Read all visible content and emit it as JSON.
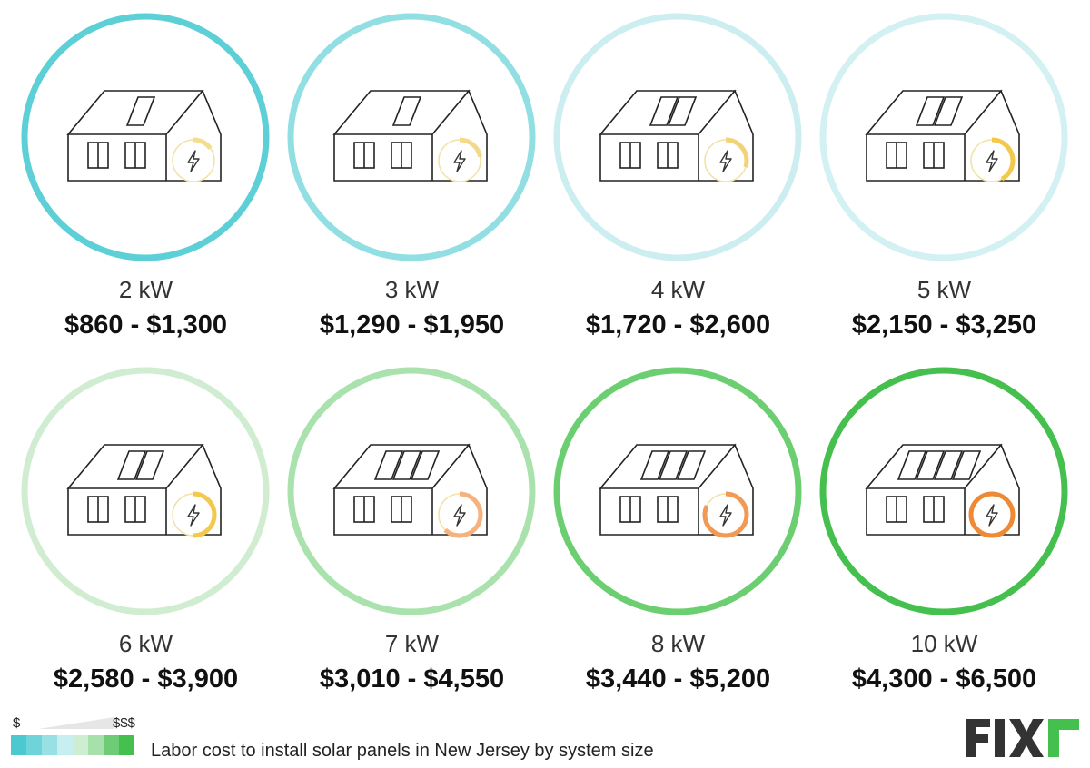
{
  "cards": [
    {
      "size": "2 kW",
      "price": "$860 - $1,300",
      "ring_color": "#5dcfd6",
      "panels": 1,
      "gauge_color": "#f3dd8e",
      "gauge_level": 0.15
    },
    {
      "size": "3 kW",
      "price": "$1,290 - $1,950",
      "ring_color": "#92dfe3",
      "panels": 1,
      "gauge_color": "#f3d98a",
      "gauge_level": 0.22
    },
    {
      "size": "4 kW",
      "price": "$1,720 - $2,600",
      "ring_color": "#cdeef0",
      "panels": 2,
      "gauge_color": "#f3d37a",
      "gauge_level": 0.3
    },
    {
      "size": "5 kW",
      "price": "$2,150 - $3,250",
      "ring_color": "#d3f0f2",
      "panels": 2,
      "gauge_color": "#f2c94c",
      "gauge_level": 0.42
    },
    {
      "size": "6 kW",
      "price": "$2,580 - $3,900",
      "ring_color": "#d0edd2",
      "panels": 2,
      "gauge_color": "#f2c94c",
      "gauge_level": 0.5
    },
    {
      "size": "7 kW",
      "price": "$3,010 - $4,550",
      "ring_color": "#a9e2ad",
      "panels": 3,
      "gauge_color": "#f5b27e",
      "gauge_level": 0.62
    },
    {
      "size": "8 kW",
      "price": "$3,440 - $5,200",
      "ring_color": "#6bcf72",
      "panels": 3,
      "gauge_color": "#f09a55",
      "gauge_level": 0.82
    },
    {
      "size": "10 kW",
      "price": "$4,300 - $6,500",
      "ring_color": "#45c04f",
      "panels": 4,
      "gauge_color": "#ee8a35",
      "gauge_level": 1.0
    }
  ],
  "legend": {
    "low_label": "$",
    "high_label": "$$$",
    "caption": "Labor cost to install solar panels in New Jersey by system size",
    "swatches": [
      "#4cc8d0",
      "#6fd3da",
      "#98e0e4",
      "#c7eef0",
      "#cdeed0",
      "#a8e0ac",
      "#6fcc76",
      "#45c04f"
    ]
  },
  "logo": {
    "text": "FIXR",
    "color": "#333333",
    "accent": "#45c04f"
  }
}
